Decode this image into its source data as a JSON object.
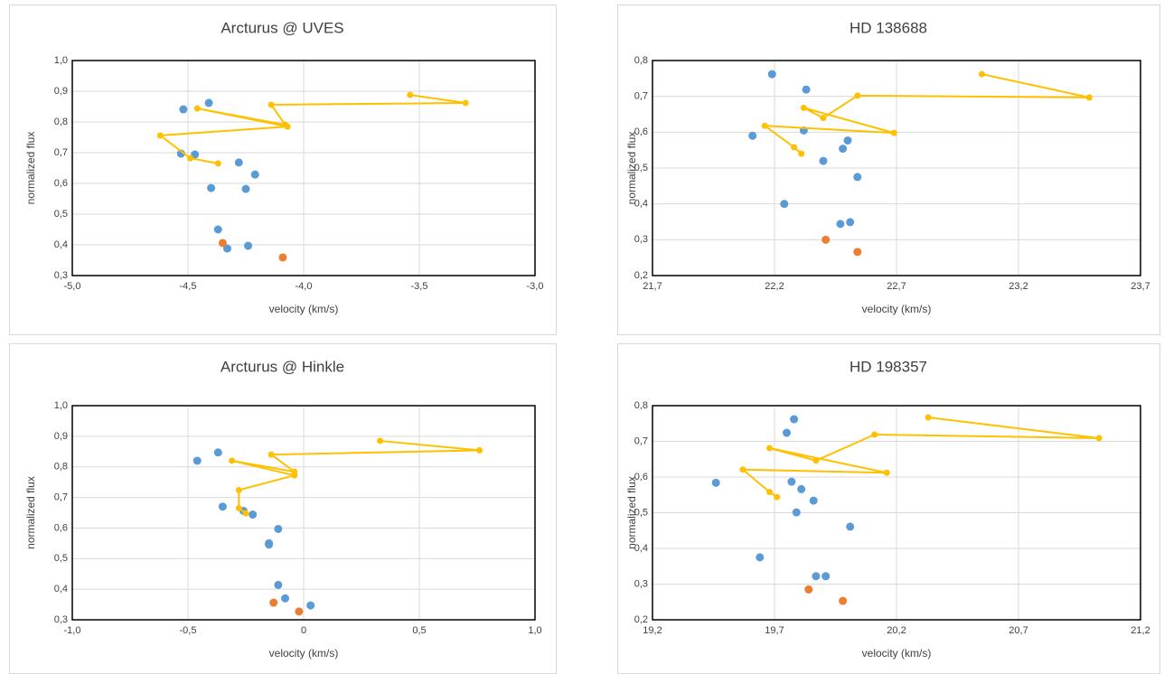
{
  "chart_data": [
    {
      "type": "scatter",
      "title": "Arcturus @ UVES",
      "x_label": "velocity (km/s)",
      "y_label": "normalized flux",
      "grid": true,
      "xlim": [
        -5.0,
        -3.0
      ],
      "xticks": [
        {
          "value": -5.0,
          "label": "-5,0"
        },
        {
          "value": -4.5,
          "label": "-4,5"
        },
        {
          "value": -4.0,
          "label": "-4,0"
        },
        {
          "value": -3.5,
          "label": "-3,5"
        },
        {
          "value": -3.0,
          "label": "-3,0"
        }
      ],
      "ylim": [
        0.3,
        1.0
      ],
      "yticks": [
        {
          "value": 0.3,
          "label": "0,3"
        },
        {
          "value": 0.4,
          "label": "0,4"
        },
        {
          "value": 0.5,
          "label": "0,5"
        },
        {
          "value": 0.6,
          "label": "0,6"
        },
        {
          "value": 0.7,
          "label": "0,7"
        },
        {
          "value": 0.8,
          "label": "0,8"
        },
        {
          "value": 0.9,
          "label": "0,9"
        },
        {
          "value": 1.0,
          "label": "1,0"
        }
      ],
      "series": [
        {
          "color": "#5b9bd5",
          "line": false,
          "x": [
            -4.41,
            -4.52,
            -4.53,
            -4.47,
            -4.28,
            -4.21,
            -4.4,
            -4.25,
            -4.37,
            -4.33,
            -4.24
          ],
          "values": [
            0.862,
            0.841,
            0.697,
            0.694,
            0.668,
            0.629,
            0.585,
            0.582,
            0.45,
            0.388,
            0.397
          ]
        },
        {
          "color": "#ed7d31",
          "line": false,
          "x": [
            -4.35,
            -4.09
          ],
          "values": [
            0.406,
            0.359
          ]
        },
        {
          "color": "#ffc000",
          "line": true,
          "x": [
            -3.54,
            -3.3,
            -4.14,
            -4.08,
            -4.46,
            -4.07,
            -4.62,
            -4.49,
            -4.37
          ],
          "values": [
            0.888,
            0.862,
            0.856,
            0.791,
            0.844,
            0.785,
            0.756,
            0.682,
            0.665
          ]
        }
      ]
    },
    {
      "type": "scatter",
      "title": "HD 138688",
      "x_label": "velocity (km/s)",
      "y_label": "normalized flux",
      "grid": true,
      "xlim": [
        21.7,
        23.7
      ],
      "xticks": [
        {
          "value": 21.7,
          "label": "21,7"
        },
        {
          "value": 22.2,
          "label": "22,2"
        },
        {
          "value": 22.7,
          "label": "22,7"
        },
        {
          "value": 23.2,
          "label": "23,2"
        },
        {
          "value": 23.7,
          "label": "23,7"
        }
      ],
      "ylim": [
        0.2,
        0.8
      ],
      "yticks": [
        {
          "value": 0.2,
          "label": "0,2"
        },
        {
          "value": 0.3,
          "label": "0,3"
        },
        {
          "value": 0.4,
          "label": "0,4"
        },
        {
          "value": 0.5,
          "label": "0,5"
        },
        {
          "value": 0.6,
          "label": "0,6"
        },
        {
          "value": 0.7,
          "label": "0,7"
        },
        {
          "value": 0.8,
          "label": "0,8"
        }
      ],
      "series": [
        {
          "color": "#5b9bd5",
          "line": false,
          "x": [
            22.19,
            22.33,
            22.11,
            22.32,
            22.5,
            22.48,
            22.4,
            22.54,
            22.24,
            22.47,
            22.51
          ],
          "values": [
            0.762,
            0.719,
            0.59,
            0.605,
            0.577,
            0.554,
            0.52,
            0.475,
            0.4,
            0.344,
            0.349
          ]
        },
        {
          "color": "#ed7d31",
          "line": false,
          "x": [
            22.41,
            22.54
          ],
          "values": [
            0.3,
            0.266
          ]
        },
        {
          "color": "#ffc000",
          "line": true,
          "x": [
            23.05,
            23.49,
            22.54,
            22.4,
            22.32,
            22.69,
            22.16,
            22.28,
            22.31
          ],
          "values": [
            0.762,
            0.697,
            0.702,
            0.64,
            0.668,
            0.598,
            0.618,
            0.558,
            0.54
          ]
        }
      ]
    },
    {
      "type": "scatter",
      "title": "Arcturus @ Hinkle",
      "x_label": "velocity (km/s)",
      "y_label": "normalized flux",
      "grid": true,
      "xlim": [
        -1.0,
        1.0
      ],
      "xticks": [
        {
          "value": -1.0,
          "label": "-1,0"
        },
        {
          "value": -0.5,
          "label": "-0,5"
        },
        0,
        {
          "value": 0.5,
          "label": "0,5"
        },
        {
          "value": 1.0,
          "label": "1,0"
        }
      ],
      "ylim": [
        0.3,
        1.0
      ],
      "yticks": [
        {
          "value": 0.3,
          "label": "0,3"
        },
        {
          "value": 0.4,
          "label": "0,4"
        },
        {
          "value": 0.5,
          "label": "0,5"
        },
        {
          "value": 0.6,
          "label": "0,6"
        },
        {
          "value": 0.7,
          "label": "0,7"
        },
        {
          "value": 0.8,
          "label": "0,8"
        },
        {
          "value": 0.9,
          "label": "0,9"
        },
        {
          "value": 1.0,
          "label": "1,0"
        }
      ],
      "series": [
        {
          "color": "#5b9bd5",
          "line": false,
          "x": [
            -0.37,
            -0.46,
            -0.35,
            -0.26,
            -0.22,
            -0.11,
            -0.15,
            -0.15,
            -0.11,
            -0.08,
            0.03
          ],
          "values": [
            0.847,
            0.82,
            0.67,
            0.656,
            0.644,
            0.597,
            0.546,
            0.55,
            0.414,
            0.37,
            0.347
          ]
        },
        {
          "color": "#ed7d31",
          "line": false,
          "x": [
            -0.13,
            -0.02
          ],
          "values": [
            0.356,
            0.327
          ]
        },
        {
          "color": "#ffc000",
          "line": true,
          "x": [
            0.33,
            0.76,
            -0.14,
            -0.04,
            -0.31,
            -0.04,
            -0.28,
            -0.28,
            -0.25
          ],
          "values": [
            0.885,
            0.854,
            0.84,
            0.784,
            0.82,
            0.772,
            0.724,
            0.665,
            0.648
          ]
        }
      ]
    },
    {
      "type": "scatter",
      "title": "HD 198357",
      "x_label": "velocity (km/s)",
      "y_label": "normalized flux",
      "grid": true,
      "xlim": [
        19.2,
        21.2
      ],
      "xticks": [
        {
          "value": 19.2,
          "label": "19,2"
        },
        {
          "value": 19.7,
          "label": "19,7"
        },
        {
          "value": 20.2,
          "label": "20,2"
        },
        {
          "value": 20.7,
          "label": "20,7"
        },
        {
          "value": 21.2,
          "label": "21,2"
        }
      ],
      "ylim": [
        0.2,
        0.8
      ],
      "yticks": [
        {
          "value": 0.2,
          "label": "0,2"
        },
        {
          "value": 0.3,
          "label": "0,3"
        },
        {
          "value": 0.4,
          "label": "0,4"
        },
        {
          "value": 0.5,
          "label": "0,5"
        },
        {
          "value": 0.6,
          "label": "0,6"
        },
        {
          "value": 0.7,
          "label": "0,7"
        },
        {
          "value": 0.8,
          "label": "0,8"
        }
      ],
      "series": [
        {
          "color": "#5b9bd5",
          "line": false,
          "x": [
            19.78,
            19.75,
            19.46,
            19.77,
            19.81,
            19.86,
            19.79,
            20.01,
            19.64,
            19.87,
            19.91
          ],
          "values": [
            0.762,
            0.724,
            0.584,
            0.587,
            0.566,
            0.534,
            0.501,
            0.461,
            0.375,
            0.322,
            0.322
          ]
        },
        {
          "color": "#ed7d31",
          "line": false,
          "x": [
            19.84,
            19.98
          ],
          "values": [
            0.285,
            0.253
          ]
        },
        {
          "color": "#ffc000",
          "line": true,
          "x": [
            20.33,
            21.03,
            20.11,
            19.87,
            19.68,
            20.16,
            19.57,
            19.68,
            19.71
          ],
          "values": [
            0.767,
            0.709,
            0.719,
            0.646,
            0.681,
            0.612,
            0.621,
            0.558,
            0.544
          ]
        }
      ]
    }
  ]
}
